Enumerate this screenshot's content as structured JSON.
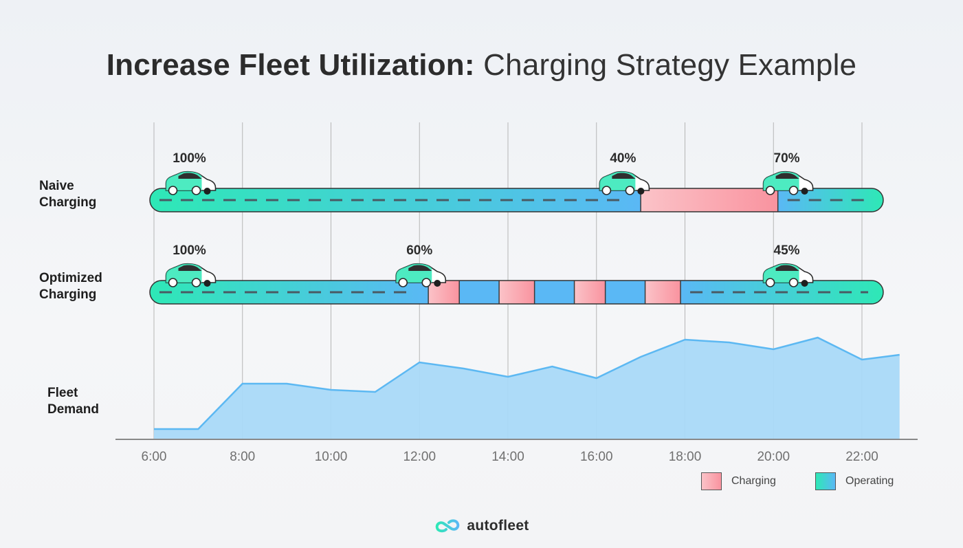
{
  "title": {
    "bold": "Increase Fleet Utilization:",
    "regular": "Charging Strategy Example"
  },
  "rows": [
    {
      "label_line1": "Naive",
      "label_line2": "Charging"
    },
    {
      "label_line1": "Optimized",
      "label_line2": "Charging"
    },
    {
      "label_line1": "Fleet",
      "label_line2": "Demand"
    }
  ],
  "legend": {
    "charging": "Charging",
    "operating": "Operating"
  },
  "colors": {
    "operating_start": "#2ee8b6",
    "operating_end": "#5ab8f5",
    "charging_start": "#fbc3c8",
    "charging_end": "#f9939f",
    "demand_fill": "#a9d9f8",
    "demand_line": "#5cb8f2",
    "axis": "#888888",
    "grid": "#b5b5b5"
  },
  "brand": {
    "name": "autofleet",
    "icon": "autofleet-logo-icon"
  },
  "chart_data": {
    "type": "timeline+area",
    "x_ticks": [
      "6:00",
      "8:00",
      "10:00",
      "12:00",
      "14:00",
      "16:00",
      "18:00",
      "20:00",
      "22:00"
    ],
    "x_range": [
      6,
      23
    ],
    "timelines": [
      {
        "name": "Naive Charging",
        "segments": [
          {
            "state": "operating",
            "start": 6,
            "end": 17
          },
          {
            "state": "charging",
            "start": 17,
            "end": 20.1
          },
          {
            "state": "operating",
            "start": 20.1,
            "end": 22.5
          }
        ],
        "battery_markers": [
          {
            "time": 6.8,
            "label": "100%"
          },
          {
            "time": 16.6,
            "label": "40%"
          },
          {
            "time": 20.3,
            "label": "70%"
          }
        ]
      },
      {
        "name": "Optimized Charging",
        "segments": [
          {
            "state": "operating",
            "start": 6,
            "end": 12.2
          },
          {
            "state": "charging",
            "start": 12.2,
            "end": 12.9
          },
          {
            "state": "operating",
            "start": 12.9,
            "end": 13.8
          },
          {
            "state": "charging",
            "start": 13.8,
            "end": 14.6
          },
          {
            "state": "operating",
            "start": 14.6,
            "end": 15.5
          },
          {
            "state": "charging",
            "start": 15.5,
            "end": 16.2
          },
          {
            "state": "operating",
            "start": 16.2,
            "end": 17.1
          },
          {
            "state": "charging",
            "start": 17.1,
            "end": 17.9
          },
          {
            "state": "operating",
            "start": 17.9,
            "end": 22.5
          }
        ],
        "battery_markers": [
          {
            "time": 6.8,
            "label": "100%"
          },
          {
            "time": 12.0,
            "label": "60%"
          },
          {
            "time": 20.3,
            "label": "45%"
          }
        ]
      }
    ],
    "demand": {
      "x": [
        6,
        7,
        8,
        9,
        10,
        11,
        12,
        13,
        14,
        15,
        16,
        17,
        18,
        19,
        20,
        21,
        22,
        22.85
      ],
      "y": [
        15,
        15,
        81,
        81,
        72,
        69,
        112,
        103,
        91,
        106,
        89,
        120,
        145,
        141,
        131,
        148,
        116,
        123
      ],
      "ylim": [
        0,
        160
      ]
    }
  }
}
